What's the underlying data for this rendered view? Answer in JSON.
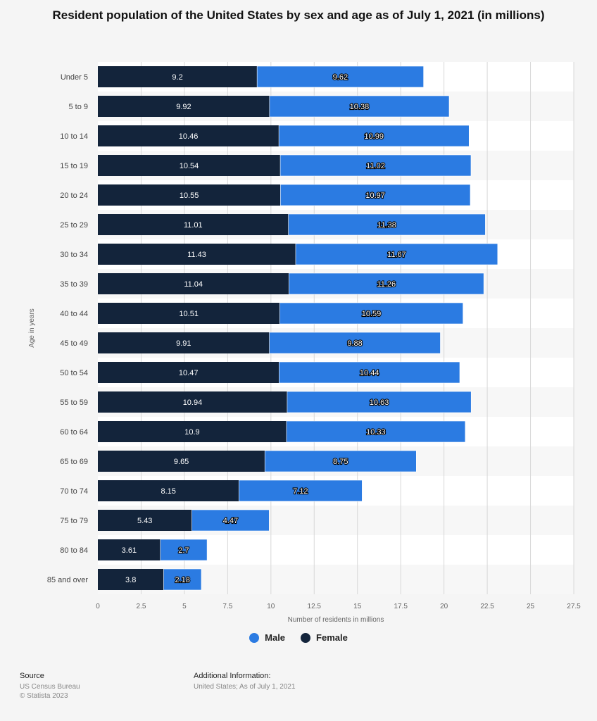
{
  "title": "Resident population of the United States by sex and age as of July 1, 2021 (in millions)",
  "colors": {
    "female": "#13243b",
    "male": "#2b7be2"
  },
  "legend": [
    {
      "name": "Male",
      "color": "#2b7be2"
    },
    {
      "name": "Female",
      "color": "#13243b"
    }
  ],
  "footer": {
    "source_label": "Source",
    "source_lines": [
      "US Census Bureau",
      "© Statista 2023"
    ],
    "info_label": "Additional Information:",
    "info_text": "United States; As of July 1, 2021"
  },
  "chart_data": {
    "type": "bar",
    "orientation": "horizontal",
    "stacked": true,
    "title": "Resident population of the United States by sex and age as of July 1, 2021 (in millions)",
    "xlabel": "Number of residents in millions",
    "ylabel": "Age in years",
    "xlim": [
      0,
      27.5
    ],
    "xticks": [
      "0",
      "2.5",
      "5",
      "7.5",
      "10",
      "12.5",
      "15",
      "17.5",
      "20",
      "22.5",
      "25",
      "27.5"
    ],
    "categories": [
      "Under 5",
      "5 to 9",
      "10 to 14",
      "15 to 19",
      "20 to 24",
      "25 to 29",
      "30 to 34",
      "35 to 39",
      "40 to 44",
      "45 to 49",
      "50 to 54",
      "55 to 59",
      "60 to 64",
      "65 to 69",
      "70 to 74",
      "75 to 79",
      "80 to 84",
      "85 and over"
    ],
    "series": [
      {
        "name": "Female",
        "values": [
          9.2,
          9.92,
          10.46,
          10.54,
          10.55,
          11.01,
          11.43,
          11.04,
          10.51,
          9.91,
          10.47,
          10.94,
          10.9,
          9.65,
          8.15,
          5.43,
          3.61,
          3.8
        ]
      },
      {
        "name": "Male",
        "values": [
          9.62,
          10.38,
          10.99,
          11.02,
          10.97,
          11.38,
          11.67,
          11.26,
          10.59,
          9.88,
          10.44,
          10.63,
          10.33,
          8.75,
          7.12,
          4.47,
          2.7,
          2.18
        ]
      }
    ],
    "grid": true,
    "legend_position": "bottom"
  }
}
